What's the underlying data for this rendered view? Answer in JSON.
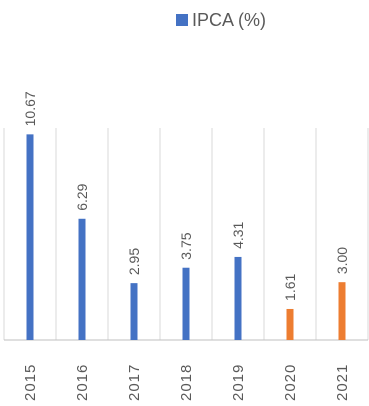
{
  "chart_data": {
    "type": "bar",
    "title": "",
    "xlabel": "",
    "ylabel": "",
    "categories": [
      "2015",
      "2016",
      "2017",
      "2018",
      "2019",
      "2020",
      "2021"
    ],
    "series": [
      {
        "name": "IPCA (%)",
        "values": [
          10.67,
          6.29,
          2.95,
          3.75,
          4.31,
          1.61,
          3.0
        ],
        "labels": [
          "10.67",
          "6.29",
          "2.95",
          "3.75",
          "4.31",
          "1.61",
          "3.00"
        ],
        "color": "#4472C4",
        "highlight_color": "#ED7D31",
        "highlight_categories": [
          "2020",
          "2021"
        ]
      }
    ],
    "ylim": [
      0,
      11
    ],
    "grid": "vertical",
    "legend": "top"
  }
}
